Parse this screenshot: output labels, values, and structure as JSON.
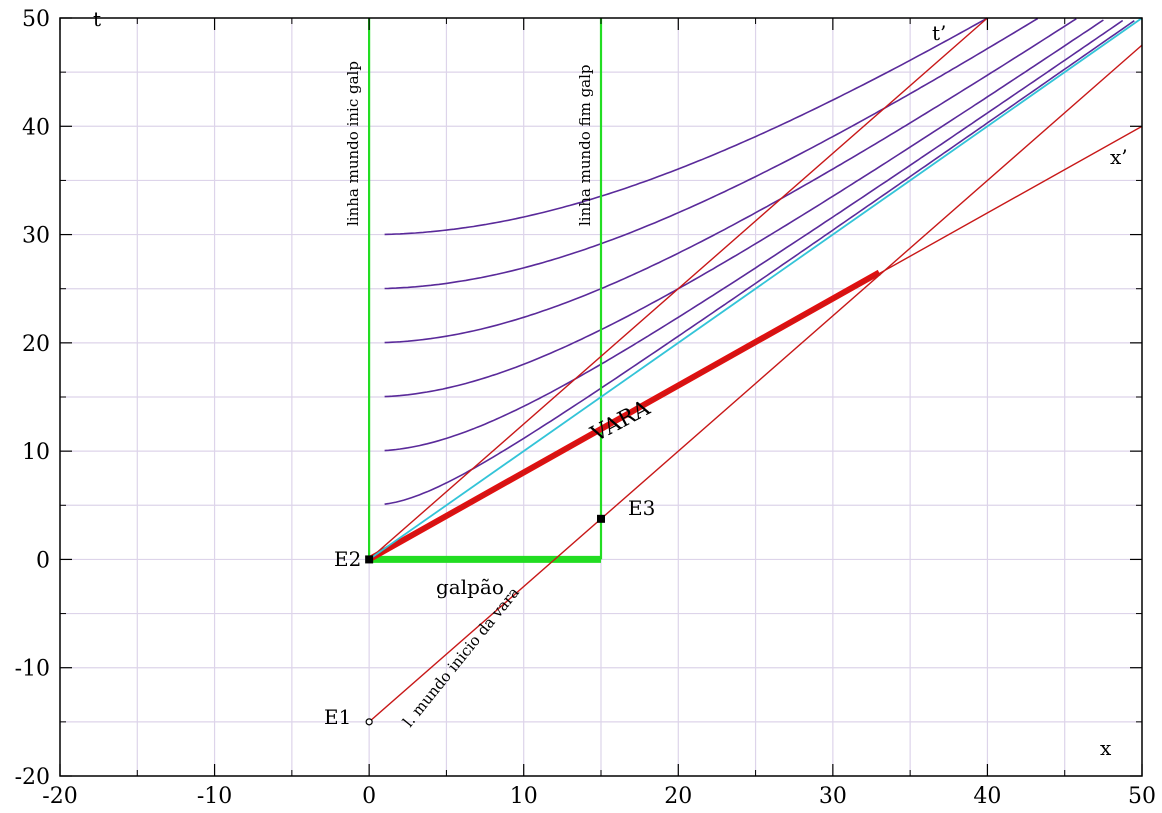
{
  "chart_data": {
    "type": "line",
    "title": "",
    "xlabel": "x",
    "ylabel": "t",
    "xlim": [
      -20,
      50
    ],
    "ylim": [
      -20,
      50
    ],
    "x_ticks": [
      -20,
      -10,
      0,
      10,
      20,
      30,
      40,
      50
    ],
    "y_ticks": [
      -20,
      -10,
      0,
      10,
      20,
      30,
      40,
      50
    ],
    "grid": true,
    "colors": {
      "grid": "#ddd4ea",
      "shed": "#22dd22",
      "rod": "#e01010",
      "axes_rot": "#c81818",
      "light": "#33c4d8",
      "hyperbola": "#5a2a9a"
    },
    "series": [
      {
        "kind": "worldline_shed_start",
        "x": [
          0,
          0
        ],
        "y": [
          0,
          50
        ]
      },
      {
        "kind": "worldline_shed_end",
        "x": [
          15,
          15
        ],
        "y": [
          0,
          50
        ]
      },
      {
        "kind": "shed",
        "x": [
          0,
          15
        ],
        "y": [
          0,
          0
        ]
      },
      {
        "kind": "rod",
        "x": [
          0,
          33
        ],
        "y": [
          0,
          26.5
        ]
      },
      {
        "kind": "t_prime_axis",
        "x": [
          0,
          40
        ],
        "y": [
          0,
          50
        ]
      },
      {
        "kind": "x_prime_axis",
        "x": [
          0,
          50
        ],
        "y": [
          0,
          40
        ]
      },
      {
        "kind": "rod_start_worldline",
        "x": [
          0,
          50
        ],
        "y": [
          -15,
          47.5
        ]
      },
      {
        "kind": "light_line",
        "x": [
          0,
          50
        ],
        "y": [
          0,
          50
        ]
      }
    ],
    "hyperbolas": [
      5,
      10,
      15,
      20,
      25,
      30
    ],
    "hyperbola_x_range": [
      1,
      50
    ],
    "events": [
      {
        "name": "E1",
        "x": 0,
        "y": -15
      },
      {
        "name": "E2",
        "x": 0,
        "y": 0
      },
      {
        "name": "E3",
        "x": 15,
        "y": 3.75
      }
    ],
    "labels": {
      "t_axis": "t",
      "x_axis": "x",
      "t_prime": "t’",
      "x_prime": "x’",
      "rod": "VARA",
      "shed": "galpão",
      "shed_start_line": "linha mundo inic galp",
      "shed_end_line": "linha mundo fim galp",
      "rod_start_line": "l. mundo inicio da vara",
      "e1": "E1",
      "e2": "E2",
      "e3": "E3"
    }
  }
}
